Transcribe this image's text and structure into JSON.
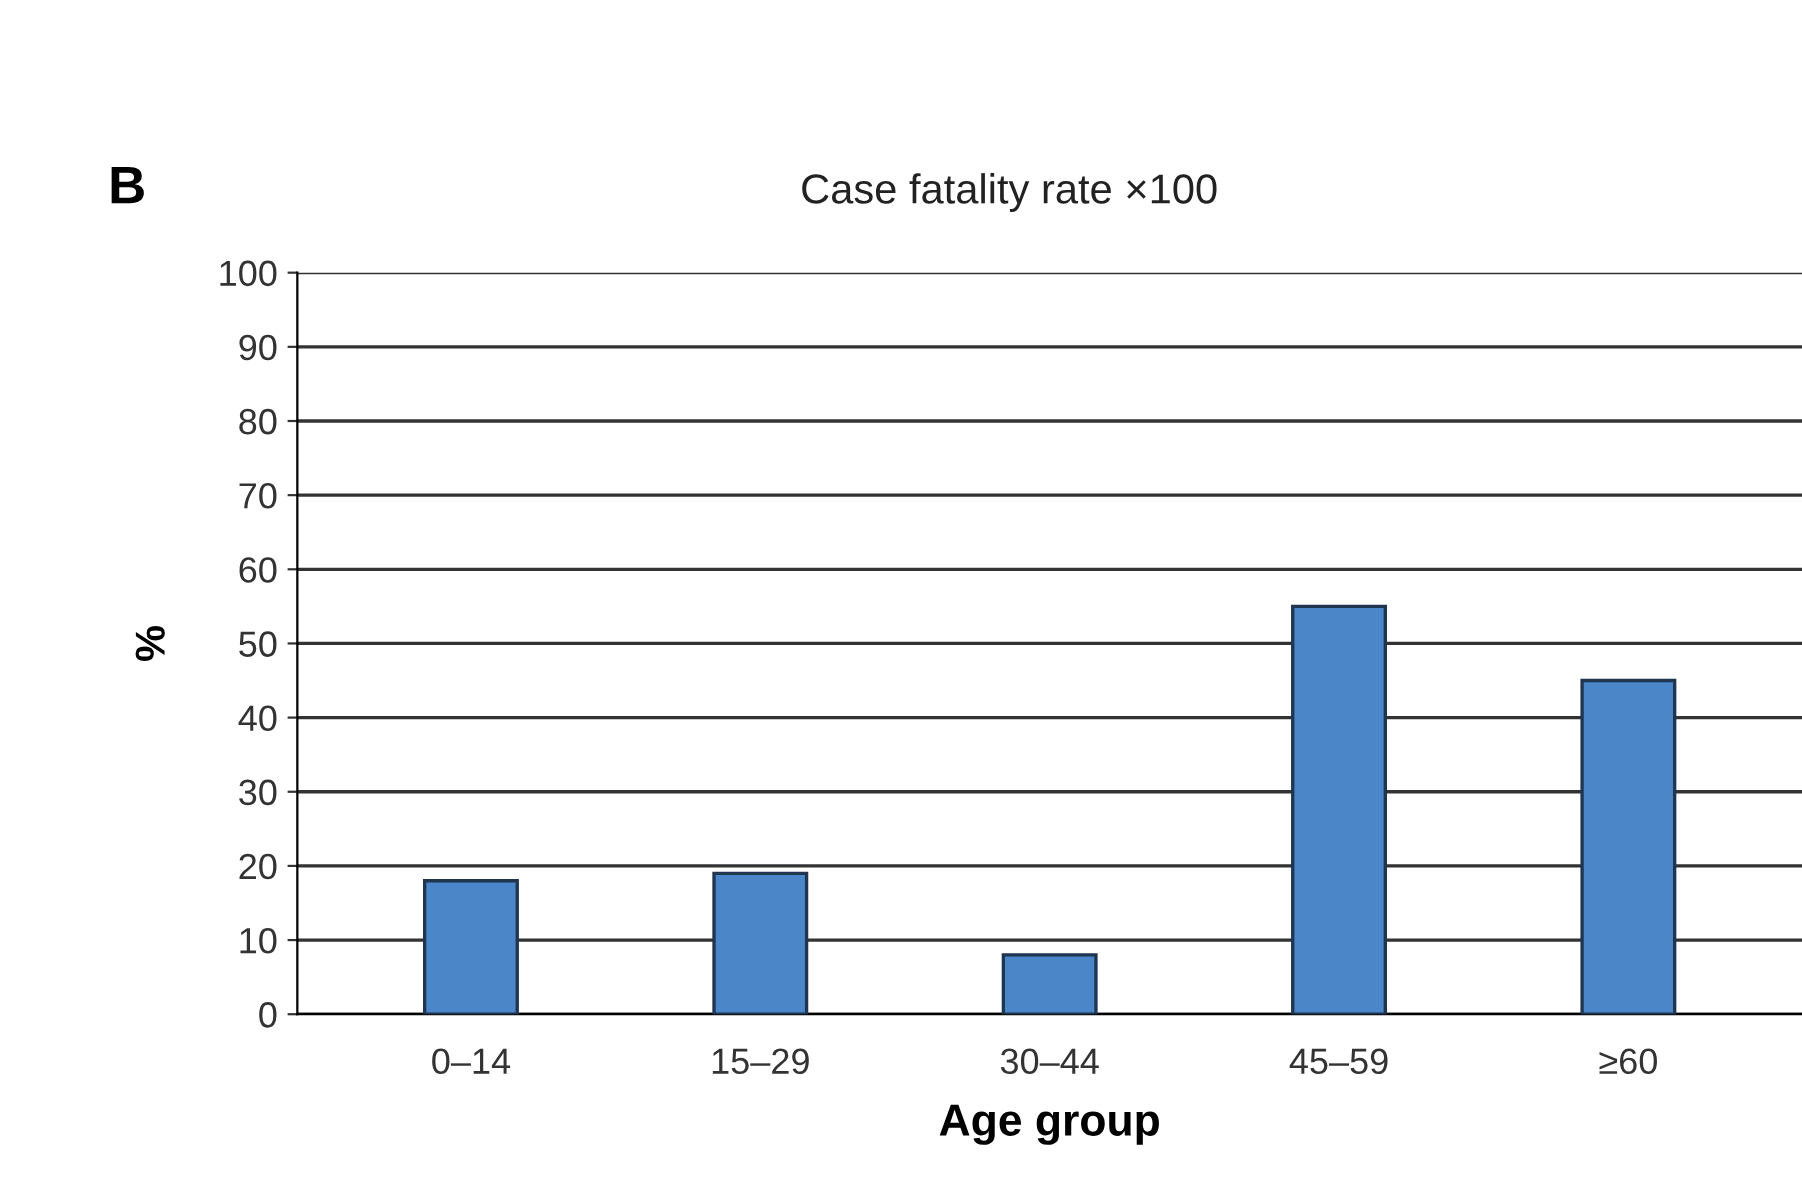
{
  "chart_data": {
    "type": "bar",
    "title": "Case fatality rate ×100",
    "xlabel": "Age group",
    "ylabel": "%",
    "annotations": [
      "B"
    ],
    "categories": [
      "0–14",
      "15–29",
      "30–44",
      "45–59",
      "≥60"
    ],
    "values": [
      18,
      19,
      8,
      55,
      45
    ],
    "color": "#4a86c8",
    "ylim": [
      0,
      100
    ],
    "yticks": [
      0,
      10,
      20,
      30,
      40,
      50,
      60,
      70,
      80,
      90,
      100
    ],
    "grid": "y",
    "legend": false
  }
}
